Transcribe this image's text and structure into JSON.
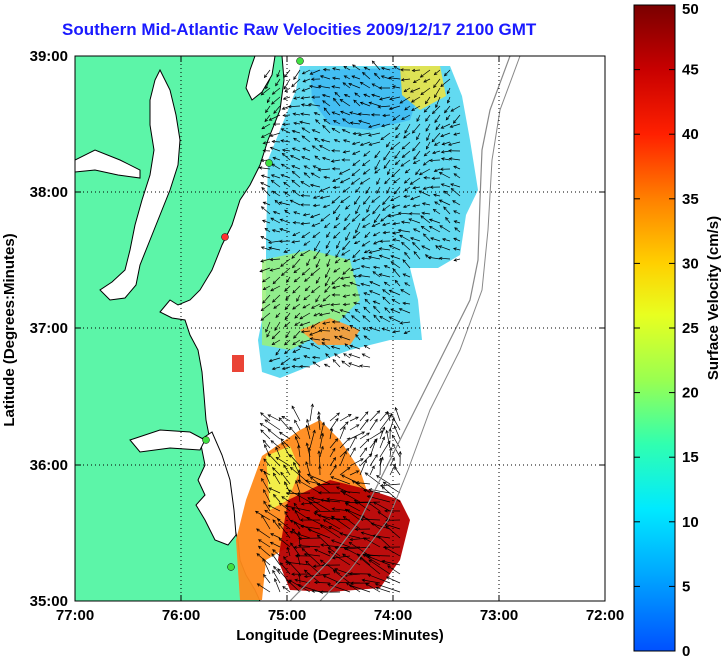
{
  "title": "Southern Mid-Atlantic Raw Velocities 2009/12/17 2100 GMT",
  "x_axis": {
    "label": "Longitude (Degrees:Minutes)",
    "ticks": [
      "77:00",
      "76:00",
      "75:00",
      "74:00",
      "73:00",
      "72:00"
    ]
  },
  "y_axis": {
    "label": "Latitude (Degrees:Minutes)",
    "ticks": [
      "39:00",
      "38:00",
      "37:00",
      "36:00",
      "35:00"
    ]
  },
  "colorbar": {
    "label": "Surface Velocity (cm/s)",
    "ticks": [
      "50",
      "45",
      "40",
      "35",
      "30",
      "25",
      "20",
      "15",
      "10",
      "5",
      "0"
    ],
    "min": 0,
    "max": 50,
    "colors": [
      "#0050ff",
      "#00b4ff",
      "#00ffd8",
      "#60ff80",
      "#d8ff20",
      "#ffe000",
      "#ff9000",
      "#ff3000",
      "#d00000",
      "#800000"
    ]
  },
  "map": {
    "land_color": "#5cf5a8",
    "stations": [
      "green",
      "green",
      "red",
      "green",
      "green"
    ]
  }
}
